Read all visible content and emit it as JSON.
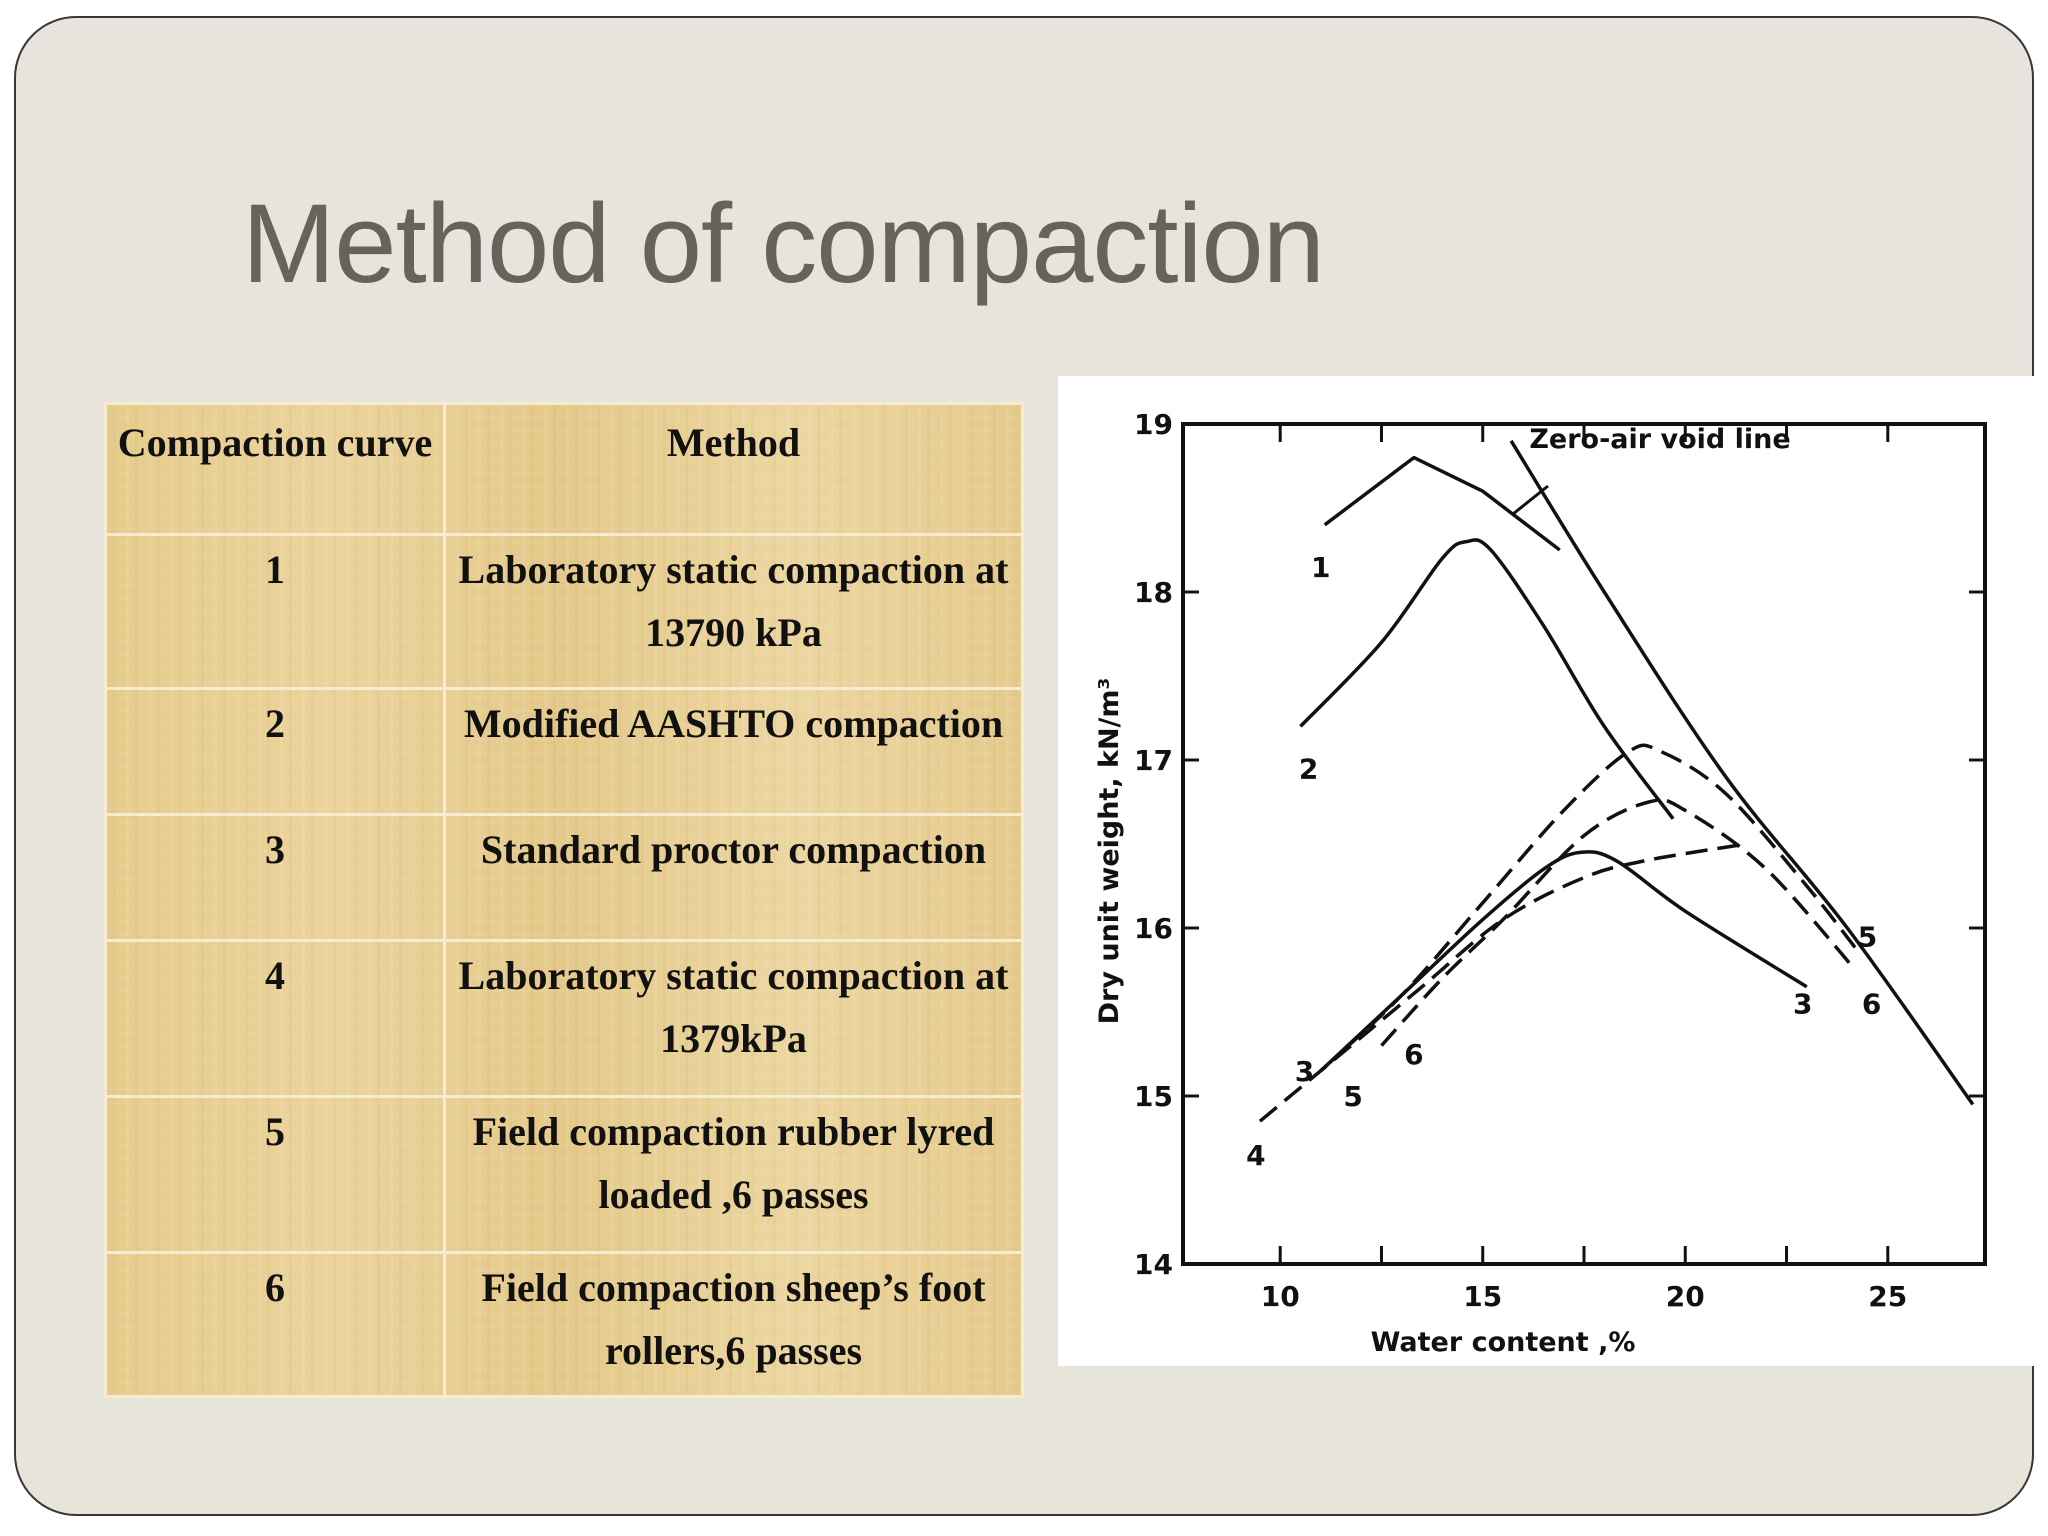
{
  "slide": {
    "title": "Method of compaction"
  },
  "table": {
    "headers": [
      "Compaction curve",
      "Method"
    ],
    "rows": [
      {
        "curve": "1",
        "method": "Laboratory static compaction at 13790 kPa"
      },
      {
        "curve": "2",
        "method": "Modified AASHTO compaction"
      },
      {
        "curve": "3",
        "method": "Standard proctor compaction"
      },
      {
        "curve": "4",
        "method": "Laboratory static compaction at 1379kPa"
      },
      {
        "curve": "5",
        "method": "Field compaction rubber lyred loaded ,6 passes"
      },
      {
        "curve": "6",
        "method": "Field compaction sheep’s foot rollers,6 passes"
      }
    ]
  },
  "chart_data": {
    "type": "line",
    "title": "",
    "xlabel": "Water content ,%",
    "ylabel": "Dry unit weight, kN/m³",
    "xlim": [
      7.6,
      27.4
    ],
    "ylim": [
      14,
      19
    ],
    "xticks": [
      10,
      15,
      20,
      25
    ],
    "yticks": [
      14,
      15,
      16,
      17,
      18,
      19
    ],
    "grid": false,
    "legend": "none (curves labeled directly; see table)",
    "annotations": [
      {
        "text": "Zero-air void line",
        "x": 21.5,
        "y": 18.1
      }
    ],
    "series": [
      {
        "name": "1",
        "style": "solid",
        "label_pos": [
          11.0,
          18.15
        ],
        "x": [
          11.1,
          13.3,
          15.0,
          16.9
        ],
        "y": [
          18.4,
          18.8,
          18.6,
          18.25
        ]
      },
      {
        "name": "2",
        "style": "solid",
        "label_pos": [
          10.7,
          16.95
        ],
        "x": [
          10.5,
          12.5,
          14.0,
          14.6,
          15.2,
          16.5,
          18.0,
          19.7
        ],
        "y": [
          17.2,
          17.7,
          18.2,
          18.3,
          18.25,
          17.8,
          17.2,
          16.65
        ]
      },
      {
        "name": "3",
        "style": "solid",
        "label_pos": [
          10.6,
          15.15
        ],
        "label_pos_end": [
          22.9,
          15.55
        ],
        "x": [
          11.0,
          13.0,
          15.0,
          16.5,
          17.4,
          18.3,
          20.0,
          23.0
        ],
        "y": [
          15.15,
          15.6,
          16.05,
          16.35,
          16.45,
          16.4,
          16.1,
          15.65
        ]
      },
      {
        "name": "4",
        "style": "dashed",
        "label_pos": [
          9.4,
          14.65
        ],
        "x": [
          9.5,
          11.5,
          13.5,
          15.5,
          17.5,
          19.0,
          21.5
        ],
        "y": [
          14.85,
          15.25,
          15.65,
          16.05,
          16.3,
          16.4,
          16.5
        ]
      },
      {
        "name": "5",
        "style": "dashed",
        "label_pos": [
          11.8,
          15.0
        ],
        "label_pos_end": [
          24.5,
          15.95
        ],
        "x": [
          11.0,
          13.0,
          15.0,
          17.0,
          18.6,
          19.4,
          21.0,
          23.0,
          24.3
        ],
        "y": [
          15.15,
          15.6,
          16.15,
          16.7,
          17.05,
          17.05,
          16.8,
          16.25,
          15.85
        ]
      },
      {
        "name": "6",
        "style": "dashed",
        "label_pos": [
          13.3,
          15.25
        ],
        "label_pos_end": [
          24.6,
          15.55
        ],
        "x": [
          12.5,
          14.0,
          15.5,
          17.5,
          19.1,
          20.0,
          22.0,
          24.2
        ],
        "y": [
          15.3,
          15.7,
          16.05,
          16.55,
          16.75,
          16.7,
          16.35,
          15.75
        ]
      },
      {
        "name": "Zero-air void line",
        "style": "solid",
        "x": [
          15.7,
          18.0,
          21.0,
          24.0,
          27.1
        ],
        "y": [
          18.9,
          18.0,
          16.9,
          16.0,
          14.95
        ]
      }
    ]
  }
}
